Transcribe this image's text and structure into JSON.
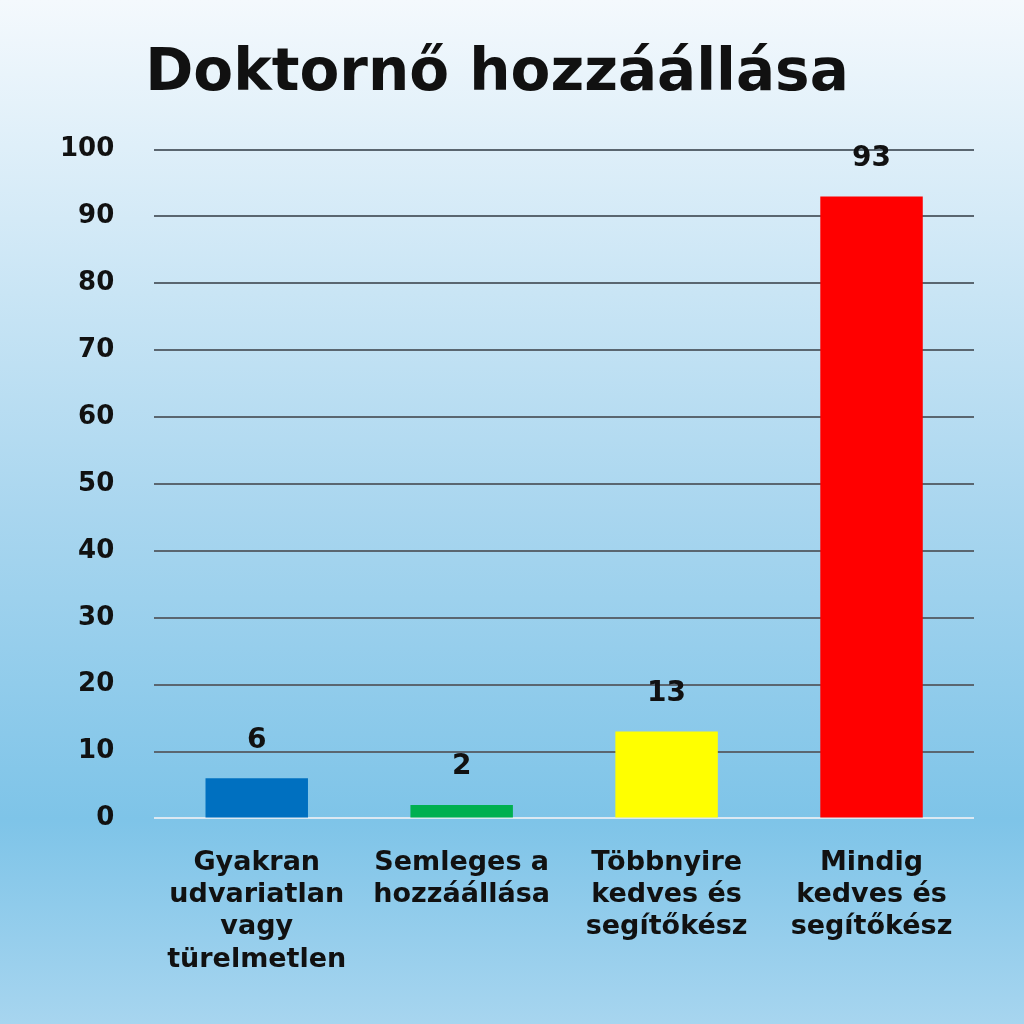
{
  "chart_data": {
    "type": "bar",
    "title": "Doktornő hozzáállása",
    "categories": [
      "Gyakran udvariatlan vagy türelmetlen",
      "Semleges a hozzáállása",
      "Többnyire kedves és segítőkész",
      "Mindig kedves és segítőkész"
    ],
    "values": [
      6,
      2,
      13,
      93
    ],
    "colors": [
      "#0070c0",
      "#00b050",
      "#ffff00",
      "#ff0000"
    ],
    "ylim": [
      0,
      100
    ],
    "yticks": [
      0,
      10,
      20,
      30,
      40,
      50,
      60,
      70,
      80,
      90,
      100
    ],
    "grid": "y",
    "data_labels": true,
    "legend": false
  }
}
